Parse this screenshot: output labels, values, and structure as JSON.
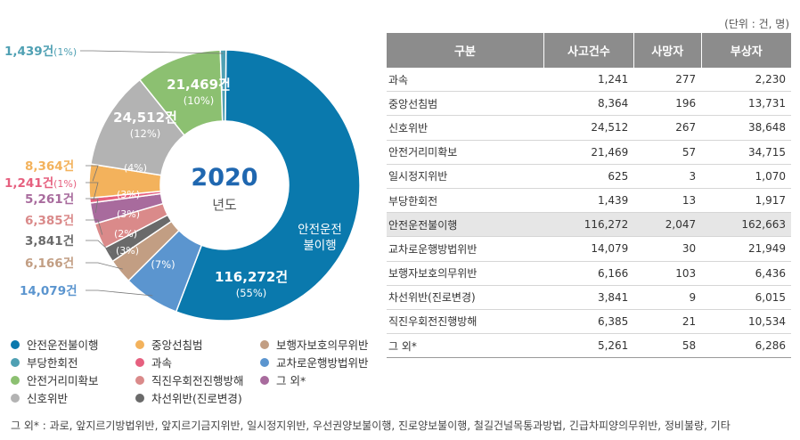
{
  "unit_note": "(단위 : 건, 명)",
  "center": {
    "year": "2020",
    "suffix": "년도"
  },
  "colors": {
    "안전운전불이행": "#0a79ad",
    "부당한회전": "#4fa0b3",
    "안전거리미확보": "#8cc071",
    "신호위반": "#b3b3b3",
    "중앙선침범": "#f3b25c",
    "과속": "#e6607f",
    "직진우회전진행방해": "#da8a8a",
    "차선위반(진로변경)": "#6a6a6a",
    "보행자보호의무위반": "#c29e83",
    "교차로운행방법위반": "#5b95cf",
    "그 외*": "#a86b9d"
  },
  "chart_data": {
    "type": "pie",
    "title": "",
    "slices": [
      {
        "name": "안전운전불이행",
        "value": 116272,
        "label": "116,272건",
        "pct_label": "(55%)"
      },
      {
        "name": "교차로운행방법위반",
        "value": 14079,
        "label": "14,079건",
        "pct_label": "(7%)"
      },
      {
        "name": "보행자보호의무위반",
        "value": 6166,
        "label": "6,166건",
        "pct_label": "(3%)"
      },
      {
        "name": "차선위반(진로변경)",
        "value": 3841,
        "label": "3,841건",
        "pct_label": "(2%)"
      },
      {
        "name": "직진우회전진행방해",
        "value": 6385,
        "label": "6,385건",
        "pct_label": "(3%)"
      },
      {
        "name": "그 외*",
        "value": 5261,
        "label": "5,261건",
        "pct_label": "(3%)"
      },
      {
        "name": "과속",
        "value": 1241,
        "label": "1,241건",
        "pct_label": "(1%)"
      },
      {
        "name": "중앙선침범",
        "value": 8364,
        "label": "8,364건",
        "pct_label": "(4%)"
      },
      {
        "name": "신호위반",
        "value": 24512,
        "label": "24,512건",
        "pct_label": "(12%)"
      },
      {
        "name": "안전거리미확보",
        "value": 21469,
        "label": "21,469건",
        "pct_label": "(10%)"
      },
      {
        "name": "부당한회전",
        "value": 1439,
        "label": "1,439건",
        "pct_label": "(1%)"
      }
    ],
    "inside_slice_name": "안전운전\n불이행"
  },
  "legend": [
    "안전운전불이행",
    "중앙선침범",
    "보행자보호의무위반",
    "부당한회전",
    "과속",
    "교차로운행방법위반",
    "안전거리미확보",
    "직진우회전진행방해",
    "그 외*",
    "신호위반",
    "차선위반(진로변경)"
  ],
  "table": {
    "headers": [
      "구분",
      "사고건수",
      "사망자",
      "부상자"
    ],
    "rows": [
      [
        "과속",
        "1,241",
        "277",
        "2,230"
      ],
      [
        "중앙선침범",
        "8,364",
        "196",
        "13,731"
      ],
      [
        "신호위반",
        "24,512",
        "267",
        "38,648"
      ],
      [
        "안전거리미확보",
        "21,469",
        "57",
        "34,715"
      ],
      [
        "일시정지위반",
        "625",
        "3",
        "1,070"
      ],
      [
        "부당한회전",
        "1,439",
        "13",
        "1,917"
      ],
      [
        "안전운전불이행",
        "116,272",
        "2,047",
        "162,663"
      ],
      [
        "교차로운행방법위반",
        "14,079",
        "30",
        "21,949"
      ],
      [
        "보행자보호의무위반",
        "6,166",
        "103",
        "6,436"
      ],
      [
        "차선위반(진로변경)",
        "3,841",
        "9",
        "6,015"
      ],
      [
        "직진우회전진행방해",
        "6,385",
        "21",
        "10,534"
      ],
      [
        "그 외*",
        "5,261",
        "58",
        "6,286"
      ]
    ],
    "highlight_row": "안전운전불이행"
  },
  "footnote": "그 외* : 과로, 앞지르기방법위반, 앞지르기금지위반, 일시정지위반, 우선권양보불이행, 진로양보불이행, 철길건널목통과방법, 긴급차피양의무위반, 정비불량, 기타"
}
